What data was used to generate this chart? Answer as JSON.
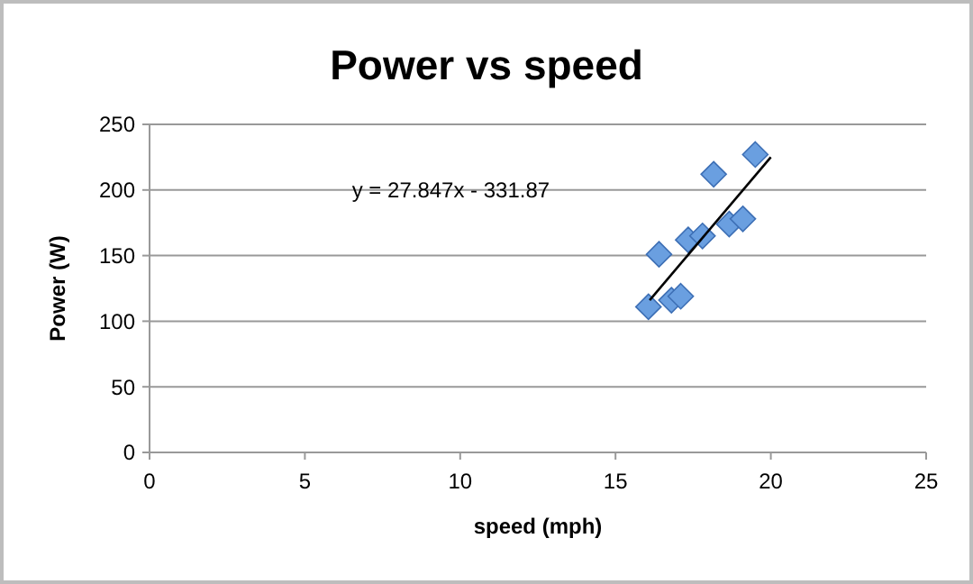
{
  "chart_data": {
    "type": "scatter",
    "title": "Power vs speed",
    "xlabel": "speed (mph)",
    "ylabel": "Power (W)",
    "xlim": [
      0,
      25
    ],
    "xticks": [
      0,
      5,
      10,
      15,
      20,
      25
    ],
    "ylim": [
      0,
      250
    ],
    "yticks": [
      0,
      50,
      100,
      150,
      200,
      250
    ],
    "grid": "y",
    "marker": "diamond",
    "series": [
      {
        "color": "#6a9fe0",
        "x": [
          16.06,
          16.4,
          16.8,
          17.1,
          17.34,
          17.8,
          18.16,
          18.66,
          19.1,
          19.5
        ],
        "values": [
          111,
          151,
          116,
          119,
          162,
          165,
          212,
          174,
          178,
          227
        ]
      },
      {
        "type": "line",
        "color": "#000000",
        "line_style": "solid",
        "marker": "none",
        "x": [
          16.1,
          20
        ],
        "values": [
          116,
          225
        ]
      }
    ],
    "annotations": [
      "y = 27.847x - 331.87"
    ]
  }
}
